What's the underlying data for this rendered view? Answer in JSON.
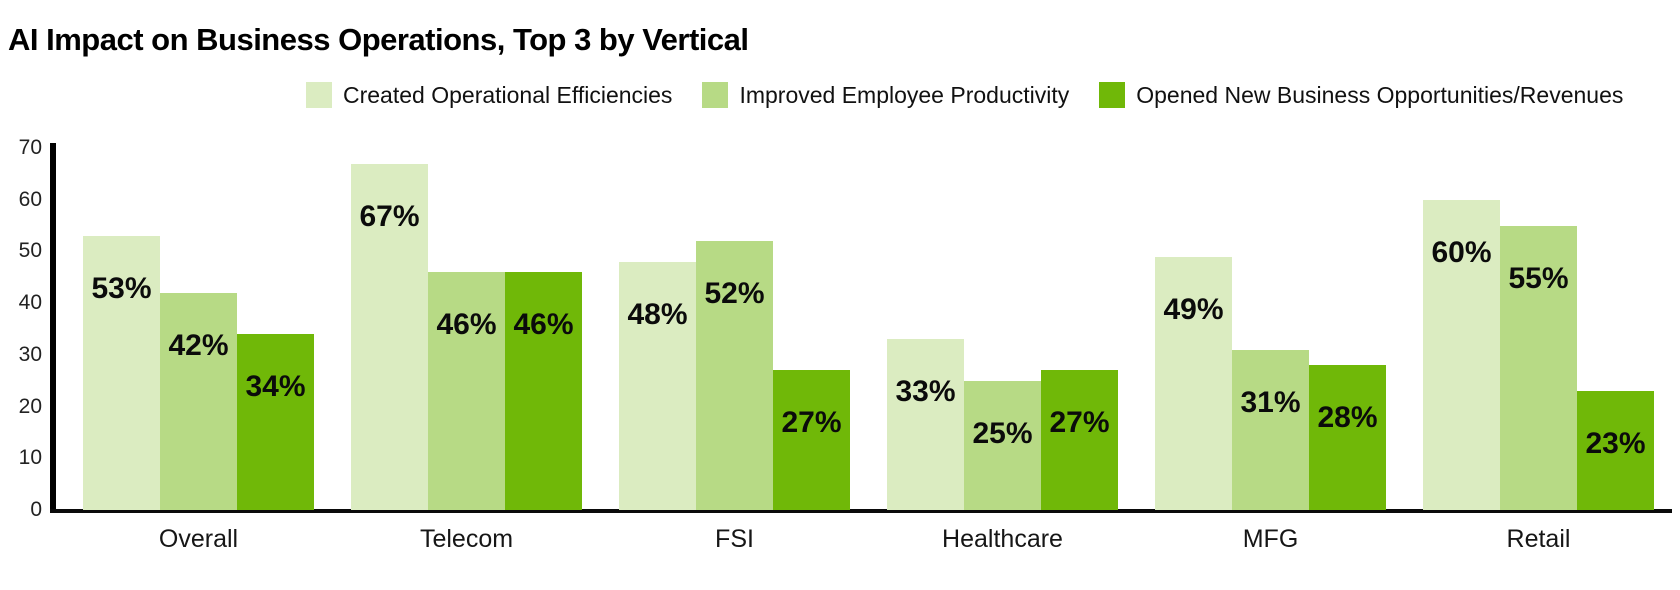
{
  "title": "AI Impact on Business Operations, Top 3 by Vertical",
  "chart_data": {
    "type": "bar",
    "title": "AI Impact on Business Operations, Top 3 by Vertical",
    "categories": [
      "Overall",
      "Telecom",
      "FSI",
      "Healthcare",
      "MFG",
      "Retail"
    ],
    "series": [
      {
        "name": "Created Operational Efficiencies",
        "color": "#dbecc1",
        "values": [
          53,
          67,
          48,
          33,
          49,
          60
        ]
      },
      {
        "name": "Improved Employee Productivity",
        "color": "#b7da85",
        "values": [
          42,
          46,
          52,
          25,
          31,
          55
        ]
      },
      {
        "name": "Opened New Business Opportunities/Revenues",
        "color": "#70b808",
        "values": [
          34,
          46,
          27,
          27,
          28,
          23
        ]
      }
    ],
    "value_label_suffix": "%",
    "y_ticks": [
      0,
      10,
      20,
      30,
      40,
      50,
      60,
      70
    ],
    "ylim": [
      0,
      70
    ],
    "legend_position": "top",
    "grid": false,
    "axis_color": "#000000",
    "text_color": "#161616"
  }
}
